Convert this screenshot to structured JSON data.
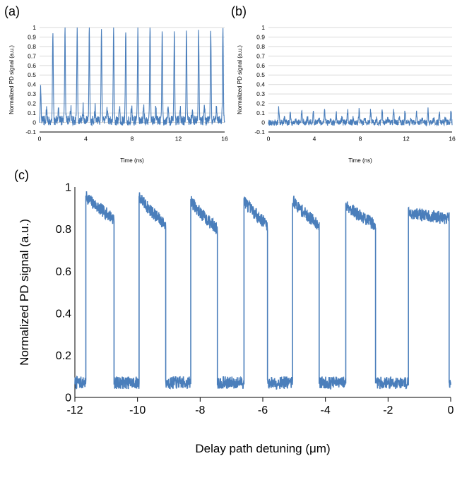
{
  "colors": {
    "trace": "#4a7ebb",
    "grid": "#d9d9d9",
    "axis": "#000000"
  },
  "chart_data": [
    {
      "id": "a",
      "panel_label": "(a)",
      "type": "line",
      "xlabel": "Time (ns)",
      "ylabel": "Normalized PD signal (a.u.)",
      "xlim": [
        0,
        16
      ],
      "ylim": [
        -0.1,
        1
      ],
      "xticks": [
        0,
        4,
        8,
        12,
        16
      ],
      "xtick_labels": [
        "0",
        "4",
        "8",
        "12",
        "16"
      ],
      "yticks": [
        -0.1,
        0,
        0.1,
        0.2,
        0.3,
        0.4,
        0.5,
        0.6,
        0.7,
        0.8,
        0.9,
        1
      ],
      "ytick_labels": [
        "-0.1",
        "0",
        "0.1",
        "0.2",
        "0.3",
        "0.4",
        "0.5",
        "0.6",
        "0.7",
        "0.8",
        "0.9",
        "1"
      ],
      "grid": true,
      "series": [
        {
          "name": "PD signal",
          "baseline": 0.02,
          "pulse_times_ns": [
            0.1,
            1.15,
            2.2,
            3.25,
            4.3,
            5.35,
            6.4,
            7.45,
            8.5,
            9.55,
            10.6,
            11.65,
            12.7,
            13.75,
            14.8,
            15.85
          ],
          "pulse_peaks": [
            0.36,
            0.98,
            0.98,
            0.98,
            0.98,
            0.98,
            0.98,
            0.98,
            0.98,
            1.0,
            0.98,
            0.98,
            0.98,
            0.98,
            0.98,
            0.98
          ],
          "secondary_peak": 0.2,
          "noise_amplitude": 0.08
        }
      ]
    },
    {
      "id": "b",
      "panel_label": "(b)",
      "type": "line",
      "xlabel": "Time (ns)",
      "ylabel": "Normalized PD signal (a.u.)",
      "xlim": [
        0,
        16
      ],
      "ylim": [
        -0.1,
        1
      ],
      "xticks": [
        0,
        4,
        8,
        12,
        16
      ],
      "xtick_labels": [
        "0",
        "4",
        "8",
        "12",
        "16"
      ],
      "yticks": [
        -0.1,
        0,
        0.1,
        0.2,
        0.3,
        0.4,
        0.5,
        0.6,
        0.7,
        0.8,
        0.9,
        1
      ],
      "ytick_labels": [
        "-0.1",
        "0",
        "0.1",
        "0.2",
        "0.3",
        "0.4",
        "0.5",
        "0.6",
        "0.7",
        "0.8",
        "0.9",
        "1"
      ],
      "grid": true,
      "series": [
        {
          "name": "PD signal",
          "baseline": 0.0,
          "pulse_times_ns": [
            0.9,
            1.9,
            2.9,
            3.9,
            4.9,
            5.9,
            6.9,
            7.9,
            8.9,
            9.9,
            10.9,
            11.9,
            12.9,
            13.9,
            14.9,
            15.9
          ],
          "pulse_peaks": [
            0.15,
            0.12,
            0.13,
            0.13,
            0.13,
            0.12,
            0.12,
            0.13,
            0.12,
            0.15,
            0.13,
            0.13,
            0.12,
            0.13,
            0.12,
            0.12
          ],
          "secondary_peak": 0.06,
          "noise_amplitude": 0.05
        }
      ]
    },
    {
      "id": "c",
      "panel_label": "(c)",
      "type": "line",
      "xlabel": "Delay path detuning (μm)",
      "ylabel": "Normalized PD signal (a.u.)",
      "xlim": [
        -12,
        0
      ],
      "ylim": [
        0,
        1
      ],
      "xticks": [
        -12,
        -10,
        -8,
        -6,
        -4,
        -2,
        0
      ],
      "xtick_labels": [
        "-12",
        "-10",
        "-8",
        "-6",
        "-4",
        "-2",
        "0"
      ],
      "yticks": [
        0,
        0.2,
        0.4,
        0.6,
        0.8,
        1
      ],
      "ytick_labels": [
        "0",
        "0.2",
        "0.4",
        "0.6",
        "0.8",
        "1"
      ],
      "grid": false,
      "series": [
        {
          "name": "PD signal",
          "low_level": 0.07,
          "low_noise": 0.06,
          "high_noise": 0.06,
          "segments": [
            {
              "level": "low",
              "x_start": -12.0,
              "x_end": -11.65
            },
            {
              "level": "high",
              "x_start": -11.65,
              "x_end": -10.75,
              "y_start": 0.96,
              "y_end": 0.85
            },
            {
              "level": "low",
              "x_start": -10.75,
              "x_end": -9.95
            },
            {
              "level": "high",
              "x_start": -9.95,
              "x_end": -9.1,
              "y_start": 0.96,
              "y_end": 0.82
            },
            {
              "level": "low",
              "x_start": -9.1,
              "x_end": -8.3
            },
            {
              "level": "high",
              "x_start": -8.3,
              "x_end": -7.45,
              "y_start": 0.94,
              "y_end": 0.8
            },
            {
              "level": "low",
              "x_start": -7.45,
              "x_end": -6.6
            },
            {
              "level": "high",
              "x_start": -6.6,
              "x_end": -5.85,
              "y_start": 0.94,
              "y_end": 0.82
            },
            {
              "level": "low",
              "x_start": -5.85,
              "x_end": -5.05
            },
            {
              "level": "high",
              "x_start": -5.05,
              "x_end": -4.2,
              "y_start": 0.94,
              "y_end": 0.82
            },
            {
              "level": "low",
              "x_start": -4.2,
              "x_end": -3.35
            },
            {
              "level": "high",
              "x_start": -3.35,
              "x_end": -2.4,
              "y_start": 0.92,
              "y_end": 0.82
            },
            {
              "level": "low",
              "x_start": -2.4,
              "x_end": -1.35
            },
            {
              "level": "high",
              "x_start": -1.35,
              "x_end": -0.05,
              "y_start": 0.88,
              "y_end": 0.85
            },
            {
              "level": "low",
              "x_start": -0.05,
              "x_end": 0.0
            }
          ]
        }
      ]
    }
  ]
}
